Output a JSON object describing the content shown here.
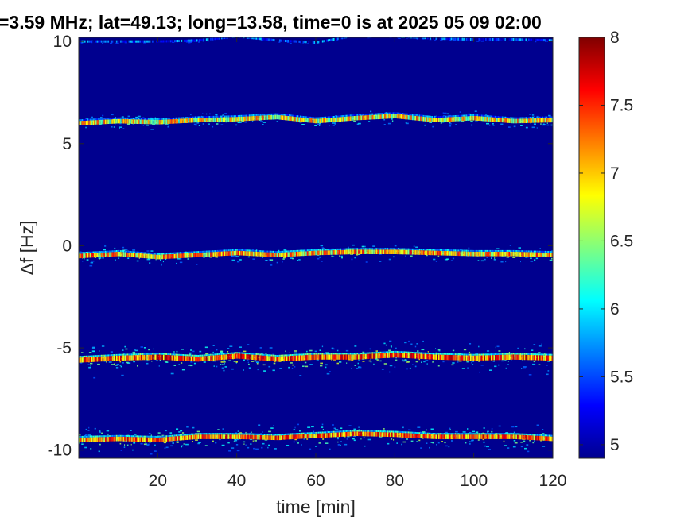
{
  "chart_data": {
    "type": "heatmap",
    "title": "=3.59 MHz;  lat=49.13; long=13.58, time=0 is at 2025 05 09 02:00",
    "xlabel": "time [min]",
    "ylabel": "Δf [Hz]",
    "xlim": [
      0,
      120
    ],
    "ylim": [
      -10.4,
      10.2
    ],
    "x_ticks": [
      20,
      40,
      60,
      80,
      100,
      120
    ],
    "x_tick_labels": [
      "20",
      "40",
      "60",
      "80",
      "100",
      "120"
    ],
    "y_ticks": [
      10,
      5,
      0,
      -5,
      -10
    ],
    "y_tick_labels": [
      "10",
      "5",
      "0",
      "-5",
      "-10"
    ],
    "colorbar": {
      "range": [
        4.9,
        8
      ],
      "ticks": [
        5,
        5.5,
        6,
        6.5,
        7,
        7.5,
        8
      ],
      "tick_labels": [
        "5",
        "5.5",
        "6",
        "6.5",
        "7",
        "7.5",
        "8"
      ],
      "colormap": "jet"
    },
    "background_color": "#00008f",
    "bands": [
      {
        "center_hz": 10.0,
        "peak_value": 6.0,
        "width_hz": 0.12,
        "spread_hz": 0.1,
        "centers": [
          10.0,
          10.0,
          10.0,
          10.05,
          10.25,
          10.05,
          9.95,
          10.3,
          10.25,
          10.15,
          10.1,
          10.1,
          10.05
        ]
      },
      {
        "center_hz": 6.1,
        "peak_value": 7.4,
        "width_hz": 0.22,
        "spread_hz": 0.45,
        "centers": [
          6.0,
          6.1,
          6.05,
          6.15,
          6.2,
          6.3,
          6.1,
          6.25,
          6.35,
          6.15,
          6.25,
          6.1,
          6.15
        ]
      },
      {
        "center_hz": -0.4,
        "peak_value": 7.6,
        "width_hz": 0.22,
        "spread_hz": 0.5,
        "centers": [
          -0.5,
          -0.4,
          -0.55,
          -0.45,
          -0.35,
          -0.45,
          -0.35,
          -0.3,
          -0.3,
          -0.35,
          -0.4,
          -0.4,
          -0.45
        ]
      },
      {
        "center_hz": -5.5,
        "peak_value": 7.9,
        "width_hz": 0.25,
        "spread_hz": 0.9,
        "centers": [
          -5.6,
          -5.5,
          -5.45,
          -5.55,
          -5.4,
          -5.55,
          -5.45,
          -5.45,
          -5.35,
          -5.45,
          -5.5,
          -5.45,
          -5.5
        ]
      },
      {
        "center_hz": -9.4,
        "peak_value": 7.8,
        "width_hz": 0.22,
        "spread_hz": 0.75,
        "centers": [
          -9.5,
          -9.45,
          -9.5,
          -9.35,
          -9.35,
          -9.4,
          -9.3,
          -9.2,
          -9.25,
          -9.35,
          -9.35,
          -9.35,
          -9.45
        ]
      }
    ]
  }
}
